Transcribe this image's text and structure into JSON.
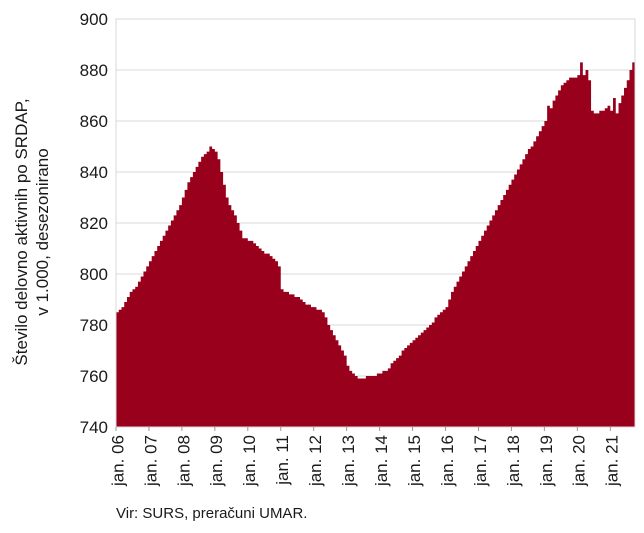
{
  "chart_data": {
    "type": "area",
    "ylabel_line1": "Število delovno aktivnih po SRDAP,",
    "ylabel_line2": "v 1.000, desezonirano",
    "source": "Vir: SURS, preračuni UMAR.",
    "ylim": [
      740,
      900
    ],
    "yticks": [
      740,
      760,
      780,
      800,
      820,
      840,
      860,
      880,
      900
    ],
    "x_tick_labels": [
      "jan. 06",
      "jan. 07",
      "jan. 08",
      "jan. 09",
      "jan. 10",
      "jan. 11",
      "jan. 12",
      "jan. 13",
      "jan. 14",
      "jan. 15",
      "jan. 16",
      "jan. 17",
      "jan. 18",
      "jan. 19",
      "jan. 20",
      "jan. 21"
    ],
    "x_start": "2006-01",
    "frequency": "monthly",
    "fill_color": "#98001c",
    "grid": "horizontal",
    "series": [
      {
        "values": [
          785,
          786,
          787,
          789,
          791,
          793,
          794,
          795,
          797,
          799,
          801,
          803,
          805,
          807,
          809,
          811,
          813,
          815,
          817,
          819,
          821,
          823,
          825,
          827,
          830,
          833,
          836,
          838,
          840,
          842,
          844,
          846,
          847,
          848,
          850,
          849,
          848,
          845,
          840,
          835,
          830,
          827,
          825,
          823,
          820,
          817,
          814,
          814,
          813,
          813,
          812,
          811,
          810,
          809,
          808,
          808,
          807,
          806,
          805,
          803,
          794,
          793,
          793,
          792,
          792,
          791,
          791,
          790,
          789,
          788,
          788,
          787,
          787,
          786,
          786,
          785,
          783,
          780,
          778,
          776,
          774,
          772,
          770,
          768,
          764,
          762,
          761,
          760,
          759,
          759,
          759,
          760,
          760,
          760,
          760,
          761,
          761,
          762,
          762,
          763,
          765,
          766,
          767,
          768,
          770,
          771,
          772,
          773,
          774,
          775,
          776,
          777,
          778,
          779,
          780,
          781,
          783,
          784,
          785,
          786,
          787,
          790,
          793,
          795,
          797,
          799,
          801,
          803,
          805,
          807,
          809,
          811,
          813,
          815,
          817,
          819,
          821,
          823,
          825,
          827,
          829,
          831,
          833,
          835,
          837,
          839,
          841,
          843,
          845,
          847,
          849,
          850,
          852,
          854,
          856,
          858,
          860,
          866,
          865,
          868,
          870,
          872,
          874,
          875,
          876,
          877,
          877,
          877,
          878,
          883,
          878,
          880,
          876,
          864,
          863,
          863,
          864,
          864,
          865,
          866,
          864,
          869,
          863,
          867,
          870,
          873,
          876,
          880,
          883
        ]
      }
    ]
  }
}
